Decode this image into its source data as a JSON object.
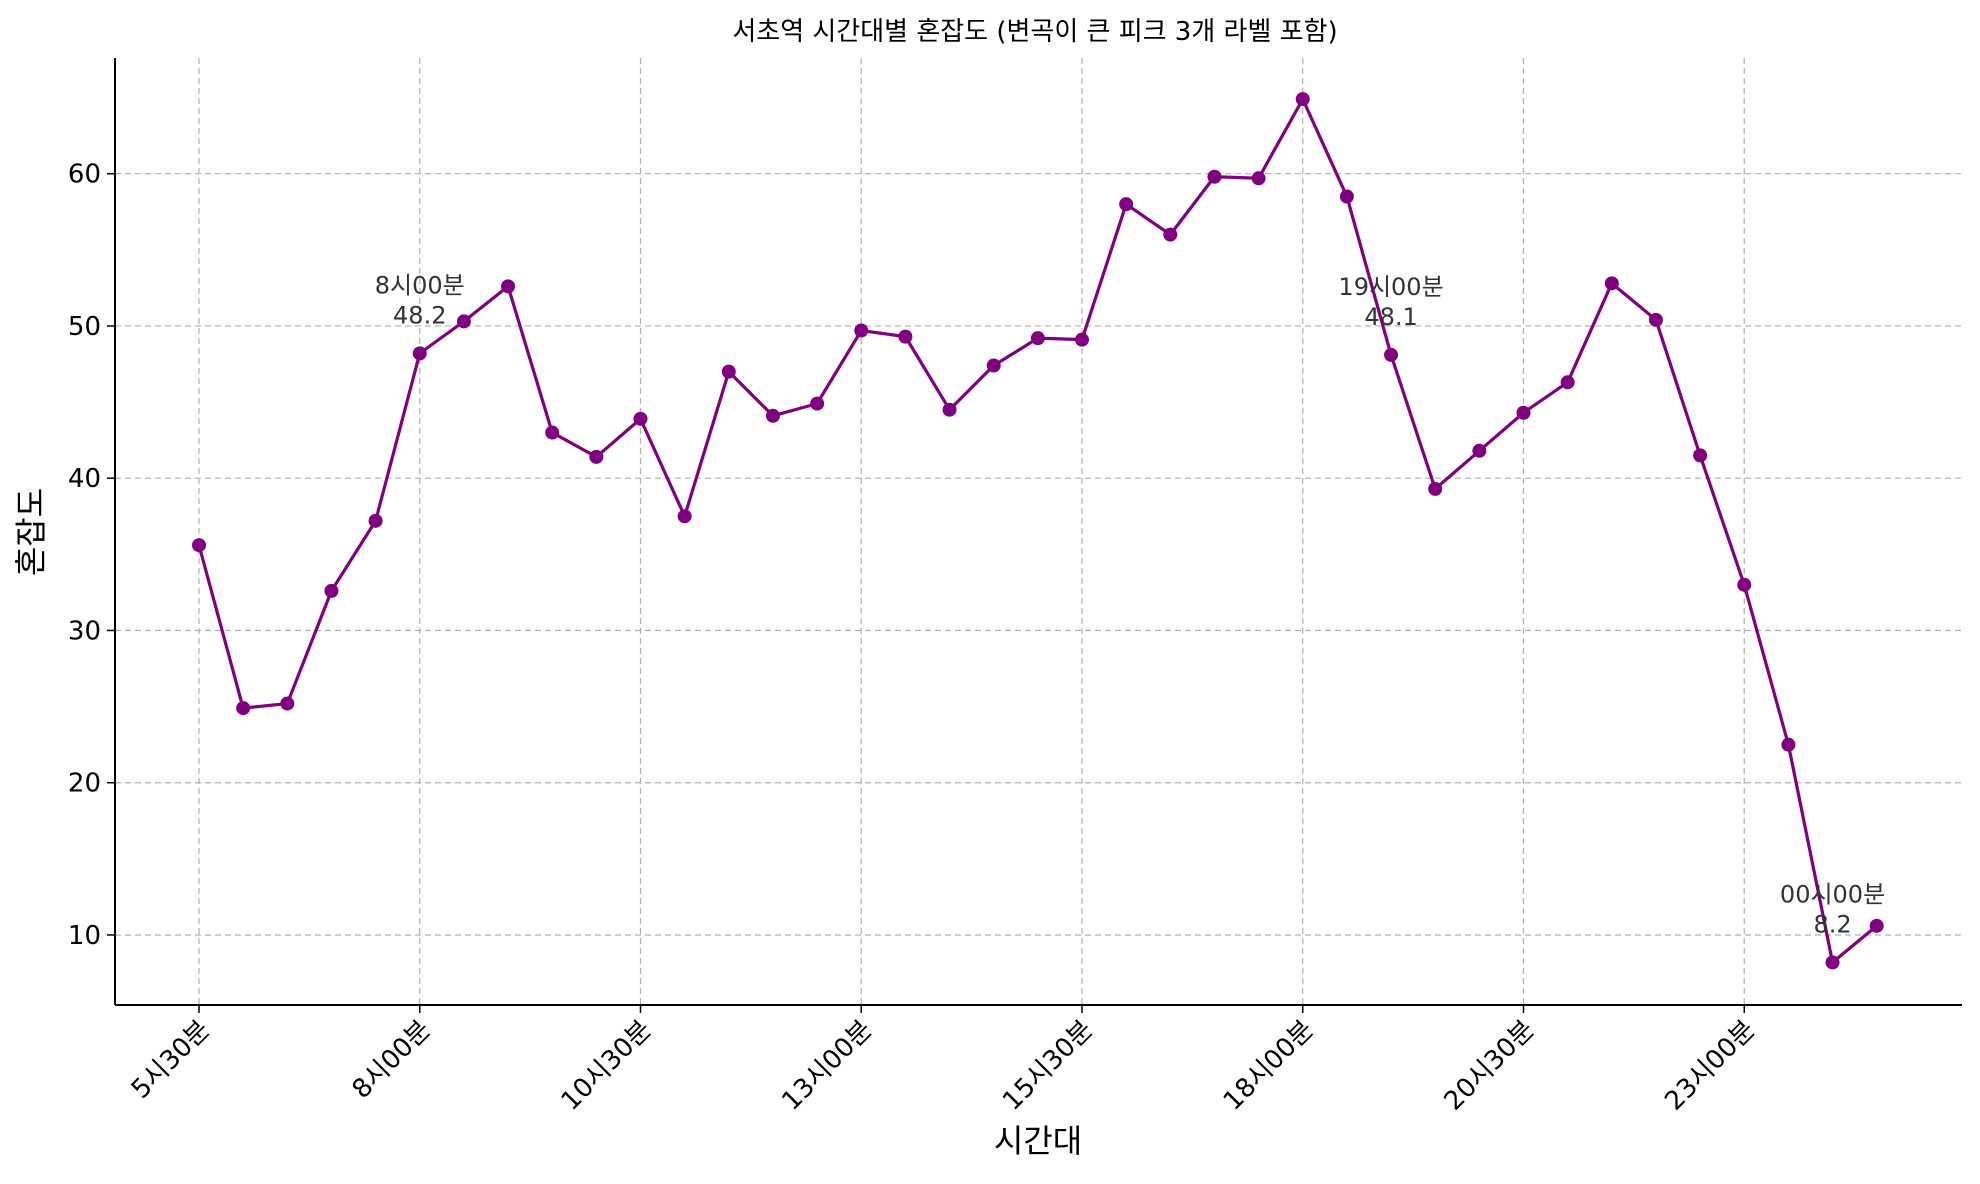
{
  "colors": {
    "line": "#800080",
    "marker": "#800080",
    "grid": "#b0b0b0",
    "axis": "#000000",
    "annotation_text": "#333333"
  },
  "chart_data": {
    "type": "line",
    "title": "서초역 시간대별 혼잡도 (변곡이 큰 피크 3개 라벨 포함)",
    "xlabel": "시간대",
    "ylabel": "혼잡도",
    "grid": true,
    "x": [
      "5시30분",
      "6시00분",
      "6시30분",
      "7시00분",
      "7시30분",
      "8시00분",
      "8시30분",
      "9시00분",
      "9시30분",
      "10시00분",
      "10시30분",
      "11시00분",
      "11시30분",
      "12시00분",
      "12시30분",
      "13시00분",
      "13시30분",
      "14시00분",
      "14시30분",
      "15시00분",
      "15시30분",
      "16시00분",
      "16시30분",
      "17시00분",
      "17시30분",
      "18시00분",
      "18시30분",
      "19시00분",
      "19시30분",
      "20시00분",
      "20시30분",
      "21시00분",
      "21시30분",
      "22시00분",
      "22시30분",
      "23시00분",
      "23시30분",
      "00시00분",
      "00시30분"
    ],
    "x_tick_labels": [
      "5시30분",
      "8시00분",
      "10시30분",
      "13시00분",
      "15시30분",
      "18시00분",
      "20시30분",
      "23시00분"
    ],
    "x_tick_indices": [
      0,
      5,
      10,
      15,
      20,
      25,
      30,
      35
    ],
    "y_ticks": [
      10,
      20,
      30,
      40,
      50,
      60
    ],
    "ylim": [
      5.4,
      67.6
    ],
    "series": [
      {
        "values": [
          35.6,
          24.9,
          25.2,
          32.6,
          37.2,
          48.2,
          50.3,
          52.6,
          43.0,
          41.4,
          43.9,
          37.5,
          47.0,
          44.1,
          44.9,
          49.7,
          49.3,
          44.5,
          47.4,
          49.2,
          49.1,
          58.0,
          56.0,
          59.8,
          59.7,
          64.9,
          58.5,
          48.1,
          39.3,
          41.8,
          44.3,
          46.3,
          52.8,
          50.4,
          41.5,
          33.0,
          22.5,
          8.2,
          10.6
        ]
      }
    ],
    "annotations": [
      {
        "index": 5,
        "label": "8시00분",
        "value_label": "48.2"
      },
      {
        "index": 27,
        "label": "19시00분",
        "value_label": "48.1"
      },
      {
        "index": 37,
        "label": "00시00분",
        "value_label": "8.2"
      }
    ]
  }
}
